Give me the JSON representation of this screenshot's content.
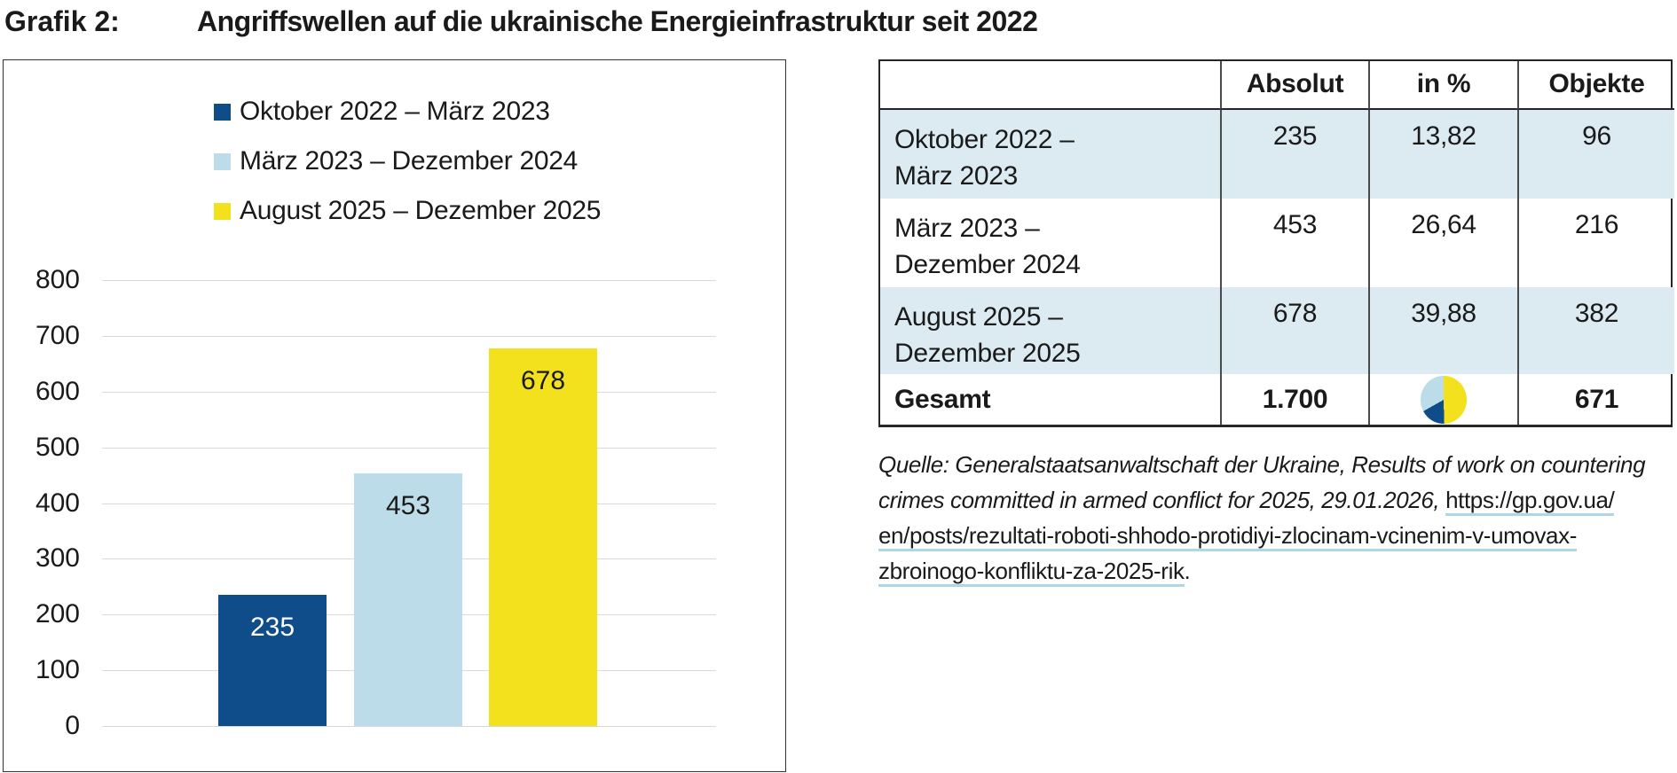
{
  "page": {
    "figure_label": "Grafik 2:",
    "figure_title": "Angriffswellen auf die ukrainische Energieinfrastruktur seit 2022"
  },
  "chart_data": {
    "type": "bar",
    "title": "Angriffswellen auf die ukrainische Energieinfrastruktur seit 2022",
    "categories": [
      "Oktober 2022 – März 2023",
      "März 2023 – Dezember 2024",
      "August 2025 – Dezember 2025"
    ],
    "values": [
      235,
      453,
      678
    ],
    "bar_colors": [
      "#0e4c8a",
      "#bddce9",
      "#f2e11c"
    ],
    "value_label_colors": [
      "#ffffff",
      "#1a1a1a",
      "#1a1a1a"
    ],
    "legend": [
      {
        "label": "Oktober 2022 – März 2023",
        "color": "#0e4c8a"
      },
      {
        "label": "März 2023 – Dezember 2024",
        "color": "#bddce9"
      },
      {
        "label": "August 2025 – Dezember 2025",
        "color": "#f2e11c"
      }
    ],
    "legend_position": "top-left-inside",
    "xlabel": "",
    "ylabel": "",
    "ylim": [
      0,
      800
    ],
    "ytick_step": 100,
    "yticks": [
      0,
      100,
      200,
      300,
      400,
      500,
      600,
      700,
      800
    ],
    "grid": true
  },
  "table": {
    "headers": [
      "",
      "Absolut",
      "in %",
      "Objekte"
    ],
    "rows": [
      {
        "label_lines": [
          "Oktober 2022 –",
          "März 2023"
        ],
        "absolut": "235",
        "percent": "13,82",
        "objekte": "96",
        "shaded": true
      },
      {
        "label_lines": [
          "März 2023 –",
          "Dezember 2024"
        ],
        "absolut": "453",
        "percent": "26,64",
        "objekte": "216",
        "shaded": false
      },
      {
        "label_lines": [
          "August 2025 –",
          "Dezember 2025"
        ],
        "absolut": "678",
        "percent": "39,88",
        "objekte": "382",
        "shaded": true
      }
    ],
    "total_row": {
      "label": "Gesamt",
      "absolut": "1.700",
      "objekte": "671"
    },
    "pie_icon": {
      "slices": [
        {
          "color": "#f2e11c",
          "value": 39.88
        },
        {
          "color": "#0e4c8a",
          "value": 13.82
        },
        {
          "color": "#bddce9",
          "value": 26.64
        }
      ]
    }
  },
  "source": {
    "lines": [
      [
        {
          "style": "italic",
          "text": "Quelle: Generalstaatsanwaltschaft der Ukraine, Results of work on countering"
        }
      ],
      [
        {
          "style": "italic",
          "text": "crimes committed in armed conflict for 2025, 29.01.2026, "
        },
        {
          "style": "link",
          "text": "https://gp.gov.ua/"
        }
      ],
      [
        {
          "style": "link",
          "text": "en/posts/rezultati-roboti-shhodo-protidiyi-zlocinam-vcinenim-v-umovax-"
        }
      ],
      [
        {
          "style": "link",
          "text": "zbroinogo-konfliktu-za-2025-rik"
        },
        {
          "style": "plain",
          "text": "."
        }
      ]
    ],
    "url": "https://gp.gov.ua/en/posts/rezultati-roboti-shhodo-protidiyi-zlocinam-vcinenim-v-umovax-zbroinogo-konfliktu-za-2025-rik"
  },
  "colors": {
    "dark_blue": "#0e4c8a",
    "light_blue": "#bddce9",
    "yellow": "#f2e11c",
    "table_row_shade": "#dcebf2",
    "gridline": "#d9d9d9",
    "link_underline": "#aed6e6"
  }
}
